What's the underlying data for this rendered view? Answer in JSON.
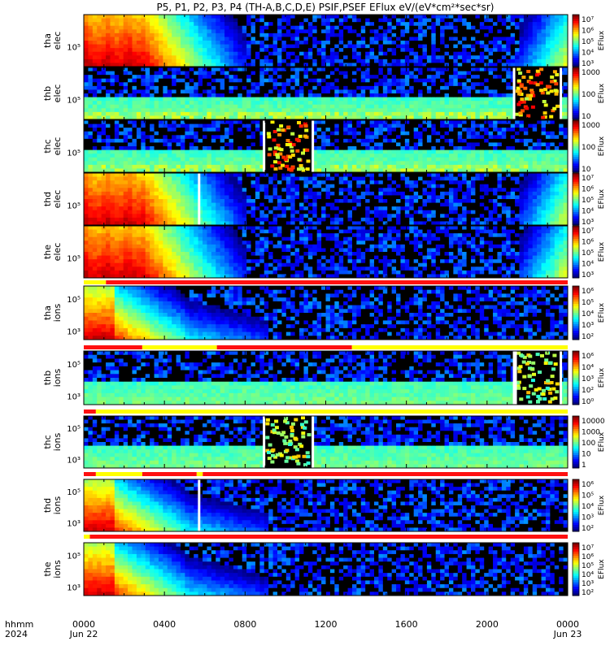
{
  "chart_data": {
    "type": "heatmap",
    "title": "P5, P1, P2, P3, P4 (TH-A,B,C,D,E) PSIF,PSEF EFlux eV/(eV*cm²*sec*sr)",
    "x_time_axis": {
      "label_line1": "hhmm",
      "label_line2": "2024",
      "ticks": [
        {
          "hour": 0,
          "label": "0000",
          "date": "Jun 22"
        },
        {
          "hour": 4,
          "label": "0400",
          "date": ""
        },
        {
          "hour": 8,
          "label": "0800",
          "date": ""
        },
        {
          "hour": 12,
          "label": "1200",
          "date": ""
        },
        {
          "hour": 16,
          "label": "1600",
          "date": ""
        },
        {
          "hour": 20,
          "label": "2000",
          "date": ""
        },
        {
          "hour": 24,
          "label": "0000",
          "date": "Jun 23"
        }
      ]
    },
    "panels": [
      {
        "probe": "tha",
        "species": "elec",
        "ytick": "10⁵",
        "colorbar_label": "EFlux",
        "colorbar_ticks": [
          "10⁷",
          "10⁶",
          "10⁵",
          "10⁴",
          "10³"
        ],
        "profile": "elec",
        "gaps": [],
        "blocks": [],
        "status_bar": null
      },
      {
        "probe": "thb",
        "species": "elec",
        "ytick": "10⁵",
        "colorbar_label": "EFlux",
        "colorbar_ticks": [
          "1000",
          "100",
          "10"
        ],
        "profile": "noise",
        "gaps": [],
        "blocks": [
          [
            21.4,
            23.6
          ]
        ],
        "status_bar": null
      },
      {
        "probe": "thc",
        "species": "elec",
        "ytick": "10⁵",
        "colorbar_label": "EFlux",
        "colorbar_ticks": [
          "1000",
          "100",
          "10"
        ],
        "profile": "noise",
        "gaps": [],
        "blocks": [
          [
            9.0,
            11.3
          ]
        ],
        "status_bar": null
      },
      {
        "probe": "thd",
        "species": "elec",
        "ytick": "10⁵",
        "colorbar_label": "EFlux",
        "colorbar_ticks": [
          "10⁷",
          "10⁶",
          "10⁵",
          "10⁴",
          "10³"
        ],
        "profile": "elec",
        "gaps": [
          5.7
        ],
        "blocks": [],
        "status_bar": null
      },
      {
        "probe": "the",
        "species": "elec",
        "ytick": "10⁵",
        "colorbar_label": "EFlux",
        "colorbar_ticks": [
          "10⁷",
          "10⁶",
          "10⁵",
          "10⁴",
          "10³"
        ],
        "profile": "elec",
        "gaps": [],
        "blocks": [],
        "status_bar": [
          [
            0,
            1.1,
            "yellow"
          ],
          [
            1.1,
            24,
            "red"
          ]
        ]
      },
      {
        "probe": "tha",
        "species": "ions",
        "ytick": "10⁵",
        "ytick2": "10³",
        "colorbar_label": "EFlux",
        "colorbar_ticks": [
          "10⁶",
          "10⁵",
          "10⁴",
          "10³",
          "10²"
        ],
        "profile": "ions",
        "gaps": [],
        "blocks": [],
        "status_bar": [
          [
            0,
            2.9,
            "red"
          ],
          [
            2.9,
            6.6,
            "yellow"
          ],
          [
            6.6,
            13.3,
            "red"
          ],
          [
            13.3,
            24,
            "yellow"
          ]
        ]
      },
      {
        "probe": "thb",
        "species": "ions",
        "ytick": "10⁵",
        "ytick2": "10³",
        "colorbar_label": "EFlux",
        "colorbar_ticks": [
          "10⁶",
          "10⁴",
          "10³",
          "10²",
          "10⁰"
        ],
        "profile": "noise",
        "gaps": [
          21.4
        ],
        "blocks": [
          [
            21.4,
            23.6
          ]
        ],
        "status_bar": [
          [
            0,
            0.6,
            "red"
          ],
          [
            0.6,
            24,
            "yellow"
          ]
        ]
      },
      {
        "probe": "thc",
        "species": "ions",
        "ytick": "10⁵",
        "ytick2": "10³",
        "colorbar_label": "EFlux",
        "colorbar_ticks": [
          "10000",
          "1000",
          "100",
          "10",
          "1"
        ],
        "profile": "noise",
        "gaps": [],
        "blocks": [
          [
            9.0,
            11.3
          ]
        ],
        "status_bar": [
          [
            0,
            0.6,
            "red"
          ],
          [
            0.6,
            2.9,
            "yellow"
          ],
          [
            2.9,
            5.6,
            "red"
          ],
          [
            5.6,
            5.9,
            "yellow"
          ],
          [
            5.9,
            24,
            "red"
          ]
        ]
      },
      {
        "probe": "thd",
        "species": "ions",
        "ytick": "10⁵",
        "ytick2": "10³",
        "colorbar_label": "EFlux",
        "colorbar_ticks": [
          "10⁶",
          "10⁵",
          "10⁴",
          "10³",
          "10²"
        ],
        "profile": "ions",
        "gaps": [
          5.7
        ],
        "blocks": [],
        "status_bar": [
          [
            0,
            0.3,
            "yellow"
          ],
          [
            0.3,
            24,
            "red"
          ]
        ]
      },
      {
        "probe": "the",
        "species": "ions",
        "ytick": "10⁵",
        "ytick2": "10³",
        "colorbar_label": "EFlux",
        "colorbar_ticks": [
          "10⁷",
          "10⁶",
          "10⁵",
          "10⁴",
          "10³",
          "10²"
        ],
        "profile": "ions",
        "gaps": [],
        "blocks": [],
        "status_bar": null
      }
    ]
  }
}
